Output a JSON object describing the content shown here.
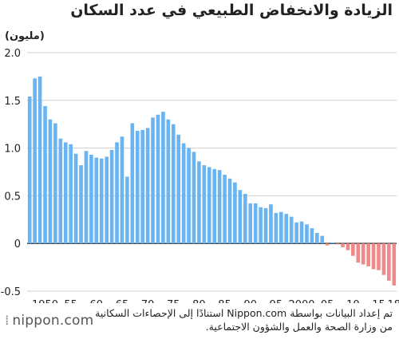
{
  "title": "الزيادة والانخفاض الطبيعي في عدد السكان",
  "source": {
    "line1": "تم إعداد البيانات بواسطة Nippon.com استنادًا إلى الإحصاءات السكانية",
    "line2": "من وزارة الصحة والعمل والشؤون الاجتماعية."
  },
  "logo": {
    "text": "nippon.com",
    "icon": "dotted-mark-icon"
  },
  "chart_data": {
    "type": "bar",
    "ylabel": "(مليون)",
    "ylim": [
      -0.5,
      2.0
    ],
    "yticks": [
      "2.0",
      "1.5",
      "1.0",
      "0.5",
      "0",
      "-0.5"
    ],
    "xticks": [
      {
        "year": 1950,
        "label": "1950"
      },
      {
        "year": 1955,
        "label": "55"
      },
      {
        "year": 1960,
        "label": "60"
      },
      {
        "year": 1965,
        "label": "65"
      },
      {
        "year": 1970,
        "label": "70"
      },
      {
        "year": 1975,
        "label": "75"
      },
      {
        "year": 1980,
        "label": "80"
      },
      {
        "year": 1985,
        "label": "85"
      },
      {
        "year": 1990,
        "label": "90"
      },
      {
        "year": 1995,
        "label": "95"
      },
      {
        "year": 2000,
        "label": "2000"
      },
      {
        "year": 2005,
        "label": "05"
      },
      {
        "year": 2010,
        "label": "10"
      },
      {
        "year": 2015,
        "label": "15"
      },
      {
        "year": 2018,
        "label": "18"
      }
    ],
    "grid": true,
    "colors": {
      "positive": "#6ab4f2",
      "negative": "#f08a8a",
      "grid": "#cfcfcf",
      "axis": "#222222"
    },
    "x": [
      1947,
      1948,
      1949,
      1950,
      1951,
      1952,
      1953,
      1954,
      1955,
      1956,
      1957,
      1958,
      1959,
      1960,
      1961,
      1962,
      1963,
      1964,
      1965,
      1966,
      1967,
      1968,
      1969,
      1970,
      1971,
      1972,
      1973,
      1974,
      1975,
      1976,
      1977,
      1978,
      1979,
      1980,
      1981,
      1982,
      1983,
      1984,
      1985,
      1986,
      1987,
      1988,
      1989,
      1990,
      1991,
      1992,
      1993,
      1994,
      1995,
      1996,
      1997,
      1998,
      1999,
      2000,
      2001,
      2002,
      2003,
      2004,
      2005,
      2006,
      2007,
      2008,
      2009,
      2010,
      2011,
      2012,
      2013,
      2014,
      2015,
      2016,
      2017,
      2018
    ],
    "values": [
      1.54,
      1.73,
      1.75,
      1.44,
      1.3,
      1.26,
      1.1,
      1.06,
      1.04,
      0.94,
      0.82,
      0.97,
      0.93,
      0.9,
      0.89,
      0.91,
      0.98,
      1.06,
      1.12,
      0.7,
      1.26,
      1.18,
      1.19,
      1.21,
      1.32,
      1.35,
      1.38,
      1.3,
      1.25,
      1.14,
      1.05,
      1.0,
      0.96,
      0.86,
      0.82,
      0.8,
      0.78,
      0.77,
      0.72,
      0.68,
      0.64,
      0.56,
      0.52,
      0.42,
      0.42,
      0.38,
      0.37,
      0.41,
      0.32,
      0.33,
      0.31,
      0.28,
      0.22,
      0.23,
      0.2,
      0.16,
      0.11,
      0.08,
      -0.02,
      0.01,
      -0.01,
      -0.04,
      -0.07,
      -0.13,
      -0.2,
      -0.22,
      -0.24,
      -0.27,
      -0.28,
      -0.33,
      -0.39,
      -0.44
    ]
  }
}
